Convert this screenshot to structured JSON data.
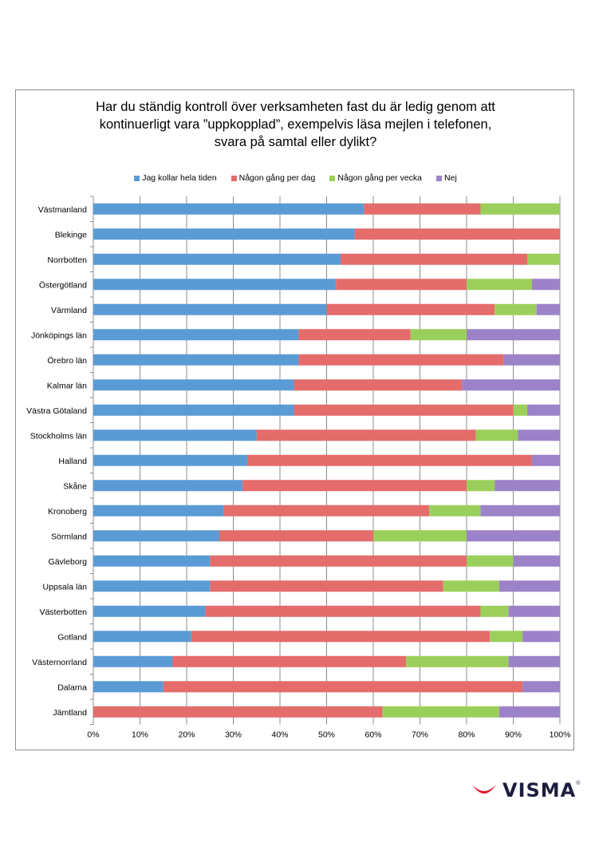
{
  "chart_data": {
    "type": "bar",
    "orientation": "horizontal",
    "stacked": "percent",
    "title": "Har du ständig kontroll över verksamheten fast du är ledig genom att\nkontinuerligt vara ”uppkopplad”, exempelvis läsa mejlen i telefonen,\nsvara på samtal eller dylikt?",
    "xlim": [
      0,
      100
    ],
    "xticks": [
      "0%",
      "10%",
      "20%",
      "30%",
      "40%",
      "50%",
      "60%",
      "70%",
      "80%",
      "90%",
      "100%"
    ],
    "legend_position": "top",
    "grid": true,
    "categories": [
      "Västmanland",
      "Blekinge",
      "Norrbotten",
      "Östergötland",
      "Värmland",
      "Jönköpings län",
      "Örebro län",
      "Kalmar län",
      "Västra Götaland",
      "Stockholms län",
      "Halland",
      "Skåne",
      "Kronoberg",
      "Sörmland",
      "Gävleborg",
      "Uppsala län",
      "Västerbotten",
      "Gotland",
      "Västernorrland",
      "Dalarna",
      "Jämtland"
    ],
    "series": [
      {
        "name": "Jag kollar hela tiden",
        "color": "#5b9bd5",
        "values": [
          58,
          56,
          53,
          52,
          50,
          44,
          44,
          43,
          43,
          35,
          33,
          32,
          28,
          27,
          25,
          25,
          24,
          21,
          17,
          15,
          0
        ]
      },
      {
        "name": "Någon gång per dag",
        "color": "#e46c6b",
        "values": [
          25,
          44,
          40,
          28,
          36,
          24,
          44,
          36,
          47,
          47,
          61,
          48,
          44,
          33,
          55,
          50,
          59,
          64,
          50,
          77,
          62
        ]
      },
      {
        "name": "Någon gång per vecka",
        "color": "#9bcf5b",
        "values": [
          17,
          0,
          7,
          14,
          9,
          12,
          0,
          0,
          3,
          9,
          0,
          6,
          11,
          20,
          10,
          12,
          6,
          7,
          22,
          0,
          25
        ]
      },
      {
        "name": "Nej",
        "color": "#9c82c8",
        "values": [
          0,
          0,
          0,
          6,
          5,
          20,
          12,
          21,
          7,
          9,
          6,
          14,
          17,
          20,
          10,
          13,
          11,
          8,
          11,
          8,
          13
        ]
      }
    ]
  },
  "brand": {
    "name": "VISMA",
    "reg": "®",
    "color": "#e4122b"
  }
}
